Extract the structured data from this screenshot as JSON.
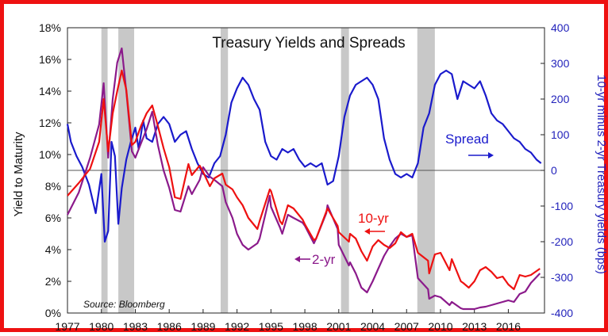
{
  "chart_data": {
    "type": "line",
    "title": "Treasury Yields and Spreads",
    "source": "Source: Bloomberg",
    "xlabel": "",
    "ylabel": "Yield to Maturity",
    "y2label": "10-yr minus 2-yr Treasury yields (bps)",
    "xlim": [
      1977,
      2019.2
    ],
    "ylim": [
      0,
      18
    ],
    "y2lim": [
      -400,
      400
    ],
    "x_ticks": [
      "1977",
      "1980",
      "1983",
      "1986",
      "1989",
      "1992",
      "1995",
      "1998",
      "2001",
      "2004",
      "2007",
      "2010",
      "2013",
      "2016"
    ],
    "y_ticks": [
      "0%",
      "2%",
      "4%",
      "6%",
      "8%",
      "10%",
      "12%",
      "14%",
      "16%",
      "18%"
    ],
    "y2_ticks": [
      "-400",
      "-300",
      "-200",
      "-100",
      "0",
      "100",
      "200",
      "300",
      "400"
    ],
    "recessions": [
      [
        1980.0,
        1980.55
      ],
      [
        1981.5,
        1982.9
      ],
      [
        1990.55,
        1991.2
      ],
      [
        2001.2,
        2001.9
      ],
      [
        2007.95,
        2009.5
      ]
    ],
    "grid": false,
    "zero_line_right_axis": 0,
    "colors": {
      "ten_year": "#ee1111",
      "two_year": "#8b1a8b",
      "spread": "#1a1acc",
      "recession": "#c8c8c8",
      "frame": "#ee1111"
    },
    "annotations": [
      {
        "text": "10-yr",
        "series": "10-yr",
        "arrow": "left"
      },
      {
        "text": "2-yr",
        "series": "2-yr",
        "arrow": "left"
      },
      {
        "text": "Spread",
        "series": "Spread",
        "arrow": "right"
      }
    ],
    "series": [
      {
        "name": "10-yr",
        "axis": "left",
        "x": [
          1977,
          1978,
          1979,
          1979.8,
          1980.2,
          1980.6,
          1981,
          1981.4,
          1981.8,
          1982.2,
          1982.7,
          1983,
          1983.5,
          1984,
          1984.5,
          1985,
          1985.5,
          1986,
          1986.5,
          1987,
          1987.7,
          1988,
          1988.7,
          1989,
          1989.6,
          1990,
          1990.7,
          1991,
          1991.6,
          1992,
          1992.5,
          1993,
          1993.8,
          1994,
          1994.9,
          1995,
          1995.8,
          1996,
          1996.5,
          1997,
          1997.8,
          1998,
          1998.8,
          1999,
          1999.9,
          2000,
          2000.9,
          2001,
          2001.9,
          2002,
          2002.5,
          2003,
          2003.5,
          2004,
          2004.5,
          2005,
          2005.5,
          2006,
          2006.5,
          2007,
          2007.5,
          2008,
          2008.9,
          2009,
          2009.5,
          2010,
          2010.8,
          2011,
          2011.8,
          2012,
          2012.5,
          2013,
          2013.5,
          2014,
          2014.5,
          2015,
          2015.5,
          2016,
          2016.5,
          2017,
          2017.5,
          2018,
          2018.8
        ],
        "values": [
          7.4,
          8.2,
          9.1,
          10.8,
          13.5,
          10.2,
          12.6,
          14.0,
          15.3,
          14.1,
          10.6,
          10.8,
          11.8,
          12.6,
          13.1,
          11.8,
          10.4,
          9.2,
          7.3,
          7.2,
          9.4,
          8.7,
          9.3,
          8.9,
          8.0,
          8.5,
          8.8,
          8.1,
          7.8,
          7.3,
          6.8,
          6.0,
          5.3,
          5.8,
          7.8,
          7.7,
          5.8,
          5.6,
          6.8,
          6.6,
          5.9,
          5.6,
          4.6,
          4.7,
          6.4,
          6.6,
          5.5,
          5.1,
          4.5,
          5.0,
          4.7,
          3.9,
          3.3,
          4.2,
          4.6,
          4.3,
          4.1,
          4.4,
          5.1,
          4.8,
          5.0,
          3.8,
          3.3,
          2.5,
          3.7,
          3.8,
          2.7,
          3.4,
          2.0,
          1.9,
          1.6,
          2.0,
          2.7,
          2.9,
          2.6,
          2.2,
          2.3,
          1.8,
          1.5,
          2.4,
          2.3,
          2.4,
          2.8
        ]
      },
      {
        "name": "2-yr",
        "axis": "left",
        "x": [
          1977,
          1978,
          1979,
          1979.8,
          1980.2,
          1980.6,
          1981,
          1981.4,
          1981.8,
          1982.2,
          1982.7,
          1983,
          1983.5,
          1984,
          1984.5,
          1985,
          1985.5,
          1986,
          1986.5,
          1987,
          1987.7,
          1988,
          1988.7,
          1989,
          1989.6,
          1990,
          1990.7,
          1991,
          1991.6,
          1992,
          1992.5,
          1993,
          1993.8,
          1994,
          1994.9,
          1995,
          1995.8,
          1996,
          1996.5,
          1997,
          1997.8,
          1998,
          1998.8,
          1999,
          1999.9,
          2000,
          2000.9,
          2001,
          2001.9,
          2002,
          2002.5,
          2003,
          2003.5,
          2004,
          2004.5,
          2005,
          2005.5,
          2006,
          2006.5,
          2007,
          2007.5,
          2008,
          2008.9,
          2009,
          2009.5,
          2010,
          2010.8,
          2011,
          2011.8,
          2012,
          2012.5,
          2013,
          2013.5,
          2014,
          2014.5,
          2015,
          2015.5,
          2016,
          2016.5,
          2017,
          2017.5,
          2018,
          2018.8
        ],
        "values": [
          6.2,
          7.6,
          9.8,
          11.9,
          14.5,
          9.8,
          13.5,
          15.8,
          16.7,
          14.0,
          10.2,
          9.8,
          10.7,
          11.6,
          12.7,
          10.6,
          9.0,
          7.9,
          6.5,
          6.4,
          8.0,
          7.5,
          8.4,
          9.2,
          8.6,
          8.4,
          8.0,
          7.0,
          6.0,
          5.0,
          4.3,
          4.0,
          4.4,
          4.7,
          7.4,
          6.7,
          5.4,
          5.0,
          6.2,
          6.0,
          5.7,
          5.5,
          4.4,
          4.7,
          6.3,
          6.8,
          5.3,
          4.3,
          3.0,
          3.2,
          2.5,
          1.6,
          1.3,
          2.0,
          2.8,
          3.6,
          4.2,
          4.7,
          5.0,
          4.8,
          4.9,
          2.2,
          1.5,
          0.9,
          1.1,
          1.0,
          0.5,
          0.7,
          0.3,
          0.25,
          0.25,
          0.25,
          0.35,
          0.4,
          0.5,
          0.6,
          0.7,
          0.8,
          0.7,
          1.2,
          1.35,
          1.9,
          2.5
        ]
      },
      {
        "name": "Spread",
        "axis": "right",
        "x": [
          1977,
          1977.3,
          1977.8,
          1978.3,
          1978.9,
          1979.5,
          1980,
          1980.3,
          1980.6,
          1980.9,
          1981.2,
          1981.5,
          1981.8,
          1982.2,
          1982.6,
          1983,
          1983.3,
          1983.7,
          1984,
          1984.5,
          1985,
          1985.5,
          1986,
          1986.5,
          1987,
          1987.5,
          1988,
          1988.5,
          1989,
          1989.5,
          1990,
          1990.5,
          1991,
          1991.5,
          1992,
          1992.5,
          1993,
          1993.5,
          1994,
          1994.5,
          1995,
          1995.5,
          1996,
          1996.5,
          1997,
          1997.5,
          1998,
          1998.5,
          1999,
          1999.5,
          2000,
          2000.5,
          2001,
          2001.5,
          2002,
          2002.5,
          2003,
          2003.5,
          2004,
          2004.5,
          2005,
          2005.5,
          2006,
          2006.5,
          2007,
          2007.5,
          2008,
          2008.5,
          2009,
          2009.5,
          2010,
          2010.5,
          2011,
          2011.5,
          2012,
          2012.5,
          2013,
          2013.5,
          2014,
          2014.5,
          2015,
          2015.5,
          2016,
          2016.5,
          2017,
          2017.5,
          2018,
          2018.5,
          2018.9
        ],
        "values": [
          130,
          80,
          40,
          10,
          -40,
          -120,
          -10,
          -200,
          -170,
          80,
          40,
          -150,
          -50,
          30,
          80,
          120,
          60,
          140,
          90,
          80,
          130,
          150,
          130,
          80,
          100,
          110,
          60,
          20,
          -10,
          -20,
          20,
          40,
          100,
          190,
          230,
          260,
          240,
          200,
          170,
          80,
          40,
          30,
          60,
          50,
          60,
          30,
          10,
          20,
          10,
          20,
          -40,
          -30,
          40,
          150,
          210,
          240,
          250,
          260,
          240,
          200,
          90,
          30,
          -10,
          -20,
          -10,
          -20,
          20,
          120,
          160,
          240,
          270,
          280,
          270,
          200,
          250,
          240,
          230,
          250,
          210,
          160,
          140,
          130,
          110,
          90,
          80,
          60,
          50,
          30,
          20
        ]
      }
    ]
  }
}
